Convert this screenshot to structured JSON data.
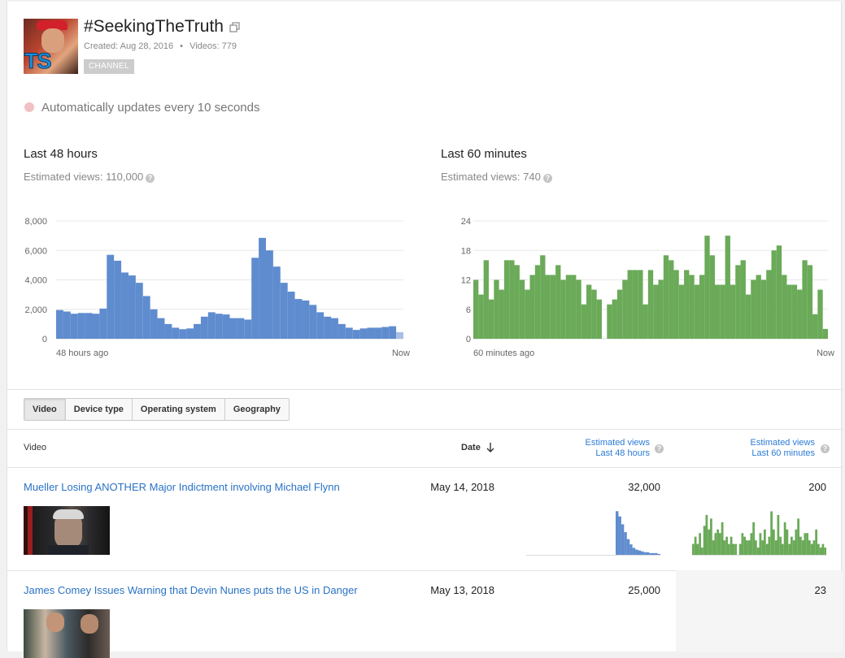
{
  "channel": {
    "title": "#SeekingTheTruth",
    "created": "Created: Aug 28, 2016",
    "separator": "•",
    "videos": "Videos: 779",
    "badge": "CHANNEL",
    "avatar_text": "TS"
  },
  "live": {
    "text": "Automatically updates every 10 seconds"
  },
  "panel48": {
    "title": "Last 48 hours",
    "estimated": "Estimated views: 110,000",
    "x_start": "48 hours ago",
    "x_end": "Now"
  },
  "panel60": {
    "title": "Last 60 minutes",
    "estimated": "Estimated views: 740",
    "x_start": "60 minutes ago",
    "x_end": "Now"
  },
  "tabs": [
    "Video",
    "Device type",
    "Operating system",
    "Geography"
  ],
  "table": {
    "col_video": "Video",
    "col_date": "Date",
    "col_48_line1": "Estimated views",
    "col_48_line2": "Last 48 hours",
    "col_60_line1": "Estimated views",
    "col_60_line2": "Last 60 minutes",
    "rows": [
      {
        "title": "Mueller Losing ANOTHER Major Indictment involving Michael Flynn",
        "date": "May 14, 2018",
        "views48": "32,000",
        "views60": "200"
      },
      {
        "title": "James Comey Issues Warning that Devin Nunes puts the US in Danger",
        "date": "May 13, 2018",
        "views48": "25,000",
        "views60": "23"
      }
    ]
  },
  "icons": {
    "external": "external-link-icon",
    "help": "help-icon",
    "sort": "arrow-down-icon"
  },
  "colors": {
    "blue": "#5f8ccf",
    "blue_partial": "#a9c0e6",
    "green": "#6aaa58",
    "link": "#2a72c4"
  },
  "chart_data": [
    {
      "type": "bar",
      "title": "Last 48 hours",
      "ylim": [
        0,
        8000
      ],
      "yticks": [
        "0",
        "2,000",
        "4,000",
        "6,000",
        "8,000"
      ],
      "ytick_values": [
        0,
        2000,
        4000,
        6000,
        8000
      ],
      "xlabel_start": "48 hours ago",
      "xlabel_end": "Now",
      "values": [
        1950,
        1850,
        1700,
        1750,
        1750,
        1700,
        2050,
        5700,
        5300,
        4500,
        4300,
        3800,
        2900,
        2000,
        1400,
        1000,
        750,
        650,
        700,
        1000,
        1500,
        1800,
        1700,
        1650,
        1400,
        1400,
        1300,
        5500,
        6850,
        6000,
        4900,
        3800,
        3200,
        2700,
        2600,
        2300,
        1800,
        1500,
        1400,
        1000,
        750,
        600,
        700,
        750,
        750,
        800,
        850,
        450
      ],
      "last_partial": true,
      "grid": true
    },
    {
      "type": "bar",
      "title": "Last 60 minutes",
      "ylim": [
        0,
        24
      ],
      "yticks": [
        "0",
        "6",
        "12",
        "18",
        "24"
      ],
      "ytick_values": [
        0,
        6,
        12,
        18,
        24
      ],
      "xlabel_start": "60 minutes ago",
      "xlabel_end": "Now",
      "values": [
        12,
        9,
        16,
        8,
        12,
        10,
        16,
        16,
        15,
        12,
        10,
        13,
        15,
        17,
        13,
        13,
        15,
        12,
        13,
        13,
        12,
        7,
        11,
        10,
        8,
        0,
        7,
        8,
        10,
        12,
        14,
        14,
        14,
        7,
        14,
        11,
        12,
        17,
        16,
        14,
        11,
        14,
        13,
        11,
        13,
        21,
        17,
        11,
        11,
        21,
        11,
        15,
        16,
        9,
        12,
        13,
        12,
        14,
        18,
        19,
        13,
        11,
        11,
        10,
        16,
        15,
        5,
        10,
        2
      ],
      "grid": true
    },
    {
      "type": "bar",
      "title": "Mueller Losing ANOTHER Major Indictment involving Michael Flynn — Last 48 hours",
      "values": [
        0,
        0,
        0,
        0,
        0,
        0,
        0,
        0,
        0,
        0,
        0,
        0,
        0,
        0,
        0,
        0,
        0,
        0,
        0,
        0,
        0,
        0,
        0,
        0,
        0,
        0,
        0,
        0,
        0,
        0,
        0,
        0,
        50,
        44,
        35,
        26,
        18,
        12,
        8,
        6,
        5,
        4,
        3,
        3,
        2,
        2,
        2,
        1
      ],
      "ylim": [
        0,
        54
      ]
    },
    {
      "type": "bar",
      "title": "Mueller Losing ANOTHER Major Indictment involving Michael Flynn — Last 60 minutes",
      "values": [
        3,
        5,
        3,
        6,
        2,
        8,
        11,
        7,
        10,
        4,
        6,
        7,
        6,
        9,
        4,
        5,
        3,
        5,
        3,
        3,
        0,
        3,
        6,
        5,
        4,
        4,
        6,
        9,
        4,
        2,
        6,
        4,
        7,
        3,
        5,
        12,
        7,
        4,
        11,
        5,
        3,
        9,
        7,
        3,
        5,
        4,
        7,
        10,
        5,
        4,
        6,
        6,
        4,
        3,
        4,
        7,
        3,
        2,
        3,
        2
      ]
    }
  ]
}
